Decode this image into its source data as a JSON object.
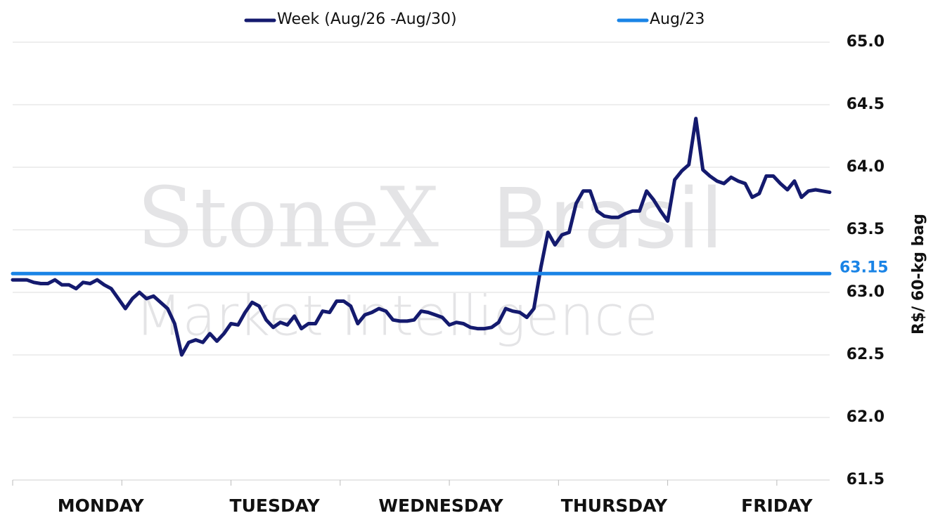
{
  "chart_data": {
    "type": "line",
    "y_label": "R$/ 60-kg bag",
    "watermark": [
      "StoneX",
      "Brasil",
      "Market Intelligence"
    ],
    "grid": true,
    "y_axis_side": "right",
    "ylim": [
      61.5,
      65.0
    ],
    "yticks": [
      {
        "value": 61.5,
        "label": "61.5"
      },
      {
        "value": 62,
        "label": "62.0"
      },
      {
        "value": 62.5,
        "label": "62.5"
      },
      {
        "value": 63,
        "label": "63.0"
      },
      {
        "value": 63.5,
        "label": "63.5"
      },
      {
        "value": 64,
        "label": "64.0"
      },
      {
        "value": 64.5,
        "label": "64.5"
      },
      {
        "value": 65,
        "label": "65.0"
      }
    ],
    "xlim": [
      0,
      116
    ],
    "xticks": [
      {
        "value": 12.5,
        "label": "MONDAY"
      },
      {
        "value": 37.2,
        "label": "TUESDAY"
      },
      {
        "value": 60.8,
        "label": "WEDNESDAY"
      },
      {
        "value": 85.4,
        "label": "THURSDAY"
      },
      {
        "value": 108.5,
        "label": "FRIDAY"
      }
    ],
    "xminor_ticks": [
      0,
      15.5,
      31,
      46.5,
      62,
      77.5,
      93,
      108.5
    ],
    "series": [
      {
        "name": "Week (Aug/26 -Aug/30)",
        "color": "#141a6e",
        "x": [
          0,
          1,
          2,
          3,
          4,
          5,
          6,
          7,
          8,
          9,
          10,
          11,
          12,
          13,
          14,
          15,
          16,
          17,
          18,
          19,
          20,
          21,
          22,
          23,
          24,
          25,
          26,
          27,
          28,
          29,
          30,
          31,
          32,
          33,
          34,
          35,
          36,
          37,
          38,
          39,
          40,
          41,
          42,
          43,
          44,
          45,
          46,
          47,
          48,
          49,
          50,
          51,
          52,
          53,
          54,
          55,
          56,
          57,
          58,
          59,
          60,
          61,
          62,
          63,
          64,
          65,
          66,
          67,
          68,
          69,
          70,
          71,
          72,
          73,
          74,
          75,
          76,
          77,
          78,
          79,
          80,
          81,
          82,
          83,
          84,
          85,
          86,
          87,
          88,
          89,
          90,
          91,
          92,
          93,
          94,
          95,
          96,
          97,
          98,
          99,
          100,
          101,
          102,
          103,
          104,
          105,
          106,
          107,
          108,
          109,
          110,
          111,
          112,
          113,
          114,
          115,
          116
        ],
        "values": [
          63.1,
          63.1,
          63.1,
          63.08,
          63.07,
          63.07,
          63.1,
          63.06,
          63.06,
          63.03,
          63.08,
          63.07,
          63.1,
          63.06,
          63.03,
          62.95,
          62.87,
          62.95,
          63.0,
          62.95,
          62.97,
          62.92,
          62.87,
          62.75,
          62.5,
          62.6,
          62.62,
          62.6,
          62.67,
          62.61,
          62.67,
          62.75,
          62.74,
          62.84,
          62.92,
          62.89,
          62.78,
          62.72,
          62.76,
          62.74,
          62.81,
          62.71,
          62.75,
          62.75,
          62.85,
          62.84,
          62.93,
          62.93,
          62.89,
          62.75,
          62.82,
          62.84,
          62.87,
          62.85,
          62.78,
          62.77,
          62.77,
          62.78,
          62.85,
          62.84,
          62.82,
          62.8,
          62.74,
          62.76,
          62.75,
          62.72,
          62.71,
          62.71,
          62.72,
          62.76,
          62.87,
          62.85,
          62.84,
          62.8,
          62.87,
          63.2,
          63.48,
          63.38,
          63.46,
          63.48,
          63.71,
          63.81,
          63.81,
          63.65,
          63.61,
          63.6,
          63.6,
          63.63,
          63.65,
          63.65,
          63.81,
          63.74,
          63.65,
          63.57,
          63.9,
          63.97,
          64.02,
          64.39,
          63.98,
          63.93,
          63.89,
          63.87,
          63.92,
          63.89,
          63.87,
          63.76,
          63.79,
          63.93,
          63.93,
          63.87,
          63.82,
          63.89,
          63.76,
          63.81,
          63.82,
          63.81,
          63.8
        ]
      },
      {
        "name": "Aug/23",
        "color": "#1a84e6",
        "x": [
          0,
          116
        ],
        "values": [
          63.15,
          63.15
        ],
        "show_value_label": true
      }
    ]
  }
}
